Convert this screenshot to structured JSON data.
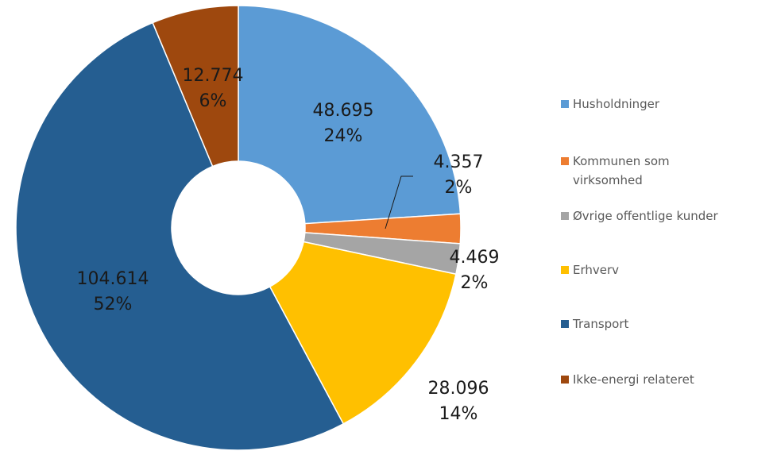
{
  "chart_data": {
    "type": "donut",
    "categories": [
      "Husholdninger",
      "Kommunen som virksomhed",
      "Øvrige offentlige kunder",
      "Erhverv",
      "Transport",
      "Ikke-energi relateret"
    ],
    "values": [
      48695,
      4357,
      4469,
      28096,
      104614,
      12774
    ],
    "value_labels": [
      "48.695",
      "4.357",
      "4.469",
      "28.096",
      "104.614",
      "12.774"
    ],
    "percent_labels": [
      "24%",
      "2%",
      "2%",
      "14%",
      "52%",
      "6%"
    ],
    "colors": [
      "#5b9bd5",
      "#ed7d31",
      "#a5a5a5",
      "#ffc000",
      "#255e91",
      "#9e480e"
    ],
    "legend": "right"
  }
}
